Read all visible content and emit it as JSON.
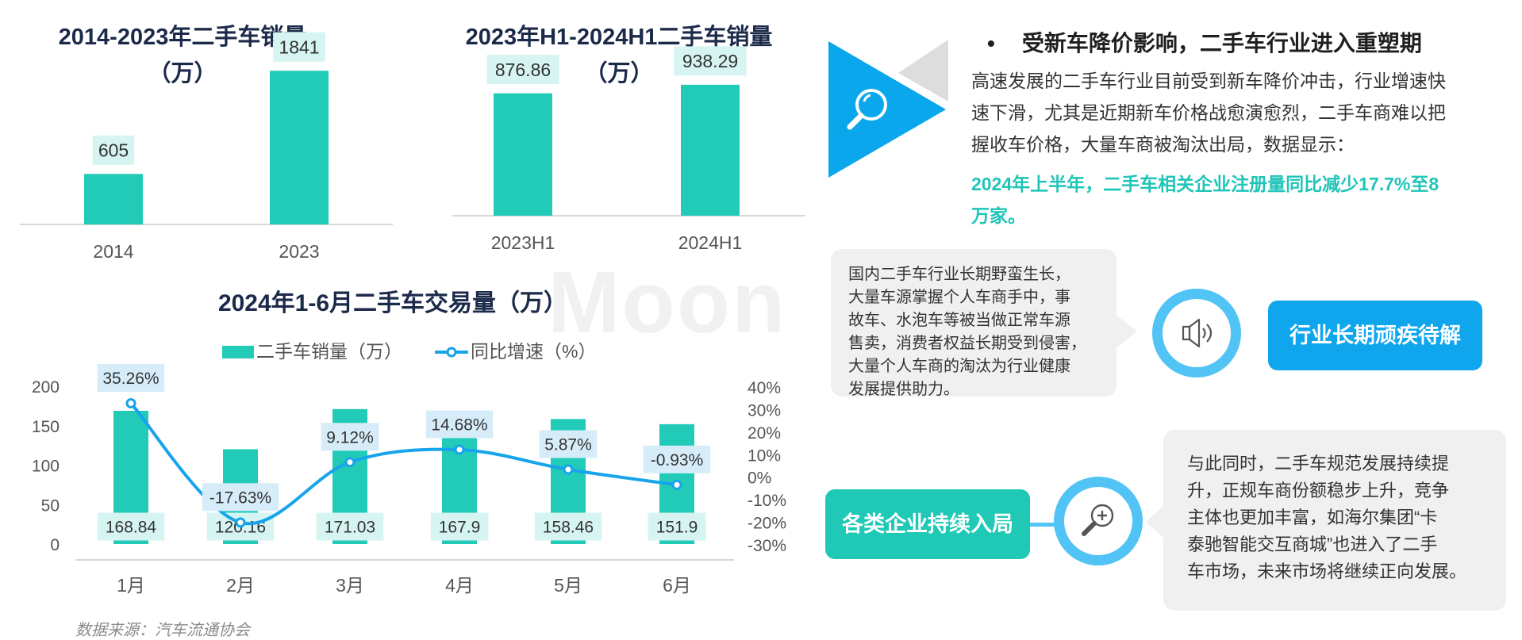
{
  "charts": {
    "left_top": {
      "title_line1": "2014-2023年二手车销量",
      "title_line2": "（万）"
    },
    "mid_top": {
      "title_line1": "2023年H1-2024H1二手车销量",
      "title_line2": "（万）"
    },
    "bottom": {
      "title": "2024年1-6月二手车交易量（万）",
      "legend_bar": "二手车销量（万）",
      "legend_line": "同比增速（%）"
    }
  },
  "chart_data": [
    {
      "type": "bar",
      "title": "2014-2023年二手车销量（万）",
      "categories": [
        "2014",
        "2023"
      ],
      "values": [
        605,
        1841
      ],
      "data_labels": [
        "605",
        "1841"
      ],
      "ylim": [
        0,
        1900
      ],
      "grid": false
    },
    {
      "type": "bar",
      "title": "2023年H1-2024H1二手车销量（万）",
      "categories": [
        "2023H1",
        "2024H1"
      ],
      "values": [
        876.86,
        938.29
      ],
      "data_labels": [
        "876.86",
        "938.29"
      ],
      "ylim": [
        0,
        1000
      ],
      "grid": false
    },
    {
      "type": "bar",
      "title": "2024年1-6月二手车交易量（万）",
      "categories": [
        "1月",
        "2月",
        "3月",
        "4月",
        "5月",
        "6月"
      ],
      "series": [
        {
          "name": "二手车销量（万）",
          "type": "bar",
          "axis": "left",
          "values": [
            168.84,
            120.16,
            171.03,
            167.9,
            158.46,
            151.9
          ],
          "labels": [
            "168.84",
            "120.16",
            "171.03",
            "167.9",
            "158.46",
            "151.9"
          ]
        },
        {
          "name": "同比增速（%）",
          "type": "line",
          "axis": "right",
          "values": [
            35.26,
            -17.63,
            9.12,
            14.68,
            5.87,
            -0.93
          ],
          "labels": [
            "35.26%",
            "-17.63%",
            "9.12%",
            "14.68%",
            "5.87%",
            "-0.93%"
          ]
        }
      ],
      "y_left": {
        "range": [
          0,
          200
        ],
        "ticks": [
          "0",
          "50",
          "100",
          "150",
          "200"
        ]
      },
      "y_right": {
        "range": [
          -30,
          40
        ],
        "ticks": [
          "-30%",
          "-20%",
          "-10%",
          "0%",
          "10%",
          "20%",
          "30%",
          "40%"
        ]
      },
      "legend_position": "top",
      "grid": false
    }
  ],
  "right_panel": {
    "bullet": "•",
    "heading": "受新车降价影响，二手车行业进入重塑期",
    "paragraph_lines": [
      "高速发展的二手车行业目前受到新车降价冲击，行业增速快",
      "速下滑，尤其是近期新车价格战愈演愈烈，二手车商难以把",
      "握收车价格，大量车商被淘汰出局，数据显示："
    ],
    "highlight_lines": [
      "2024年上半年，二手车相关企业注册量同比减少17.7%至8",
      "万家。"
    ],
    "bubble1_lines": [
      "国内二手车行业长期野蛮生长，",
      "大量车源掌握个人车商手中，事",
      "故车、水泡车等被当做正常车源",
      "售卖，消费者权益长期受到侵害，",
      "大量个人车商的淘汰为行业健康",
      "发展提供助力。"
    ],
    "pill1": "行业长期顽疾待解",
    "pill2": "各类企业持续入局",
    "bubble2_lines": [
      "与此同时，二手车规范发展持续提",
      "升，正规车商份额稳步上升，竞争",
      "主体也更加丰富，如海尔集团“卡",
      "泰驰智能交互商城”也进入了二手",
      "车市场，未来市场将继续正向发展。"
    ]
  },
  "source": "数据来源：汽车流通协会",
  "watermark": "Moon",
  "icons": [
    "search-icon",
    "speaker-icon",
    "magnifier-plus-icon"
  ],
  "colors": {
    "bar": "#22cbb8",
    "line": "#17a4ea",
    "label_bg": "#d6f5f2",
    "line_label_bg": "#d6edf9",
    "title": "#1c2a4a",
    "highlight": "#20c4b8",
    "blue_pill": "#0fa6ee",
    "teal_pill": "#20c9b6",
    "ring": "#52c3f5"
  }
}
